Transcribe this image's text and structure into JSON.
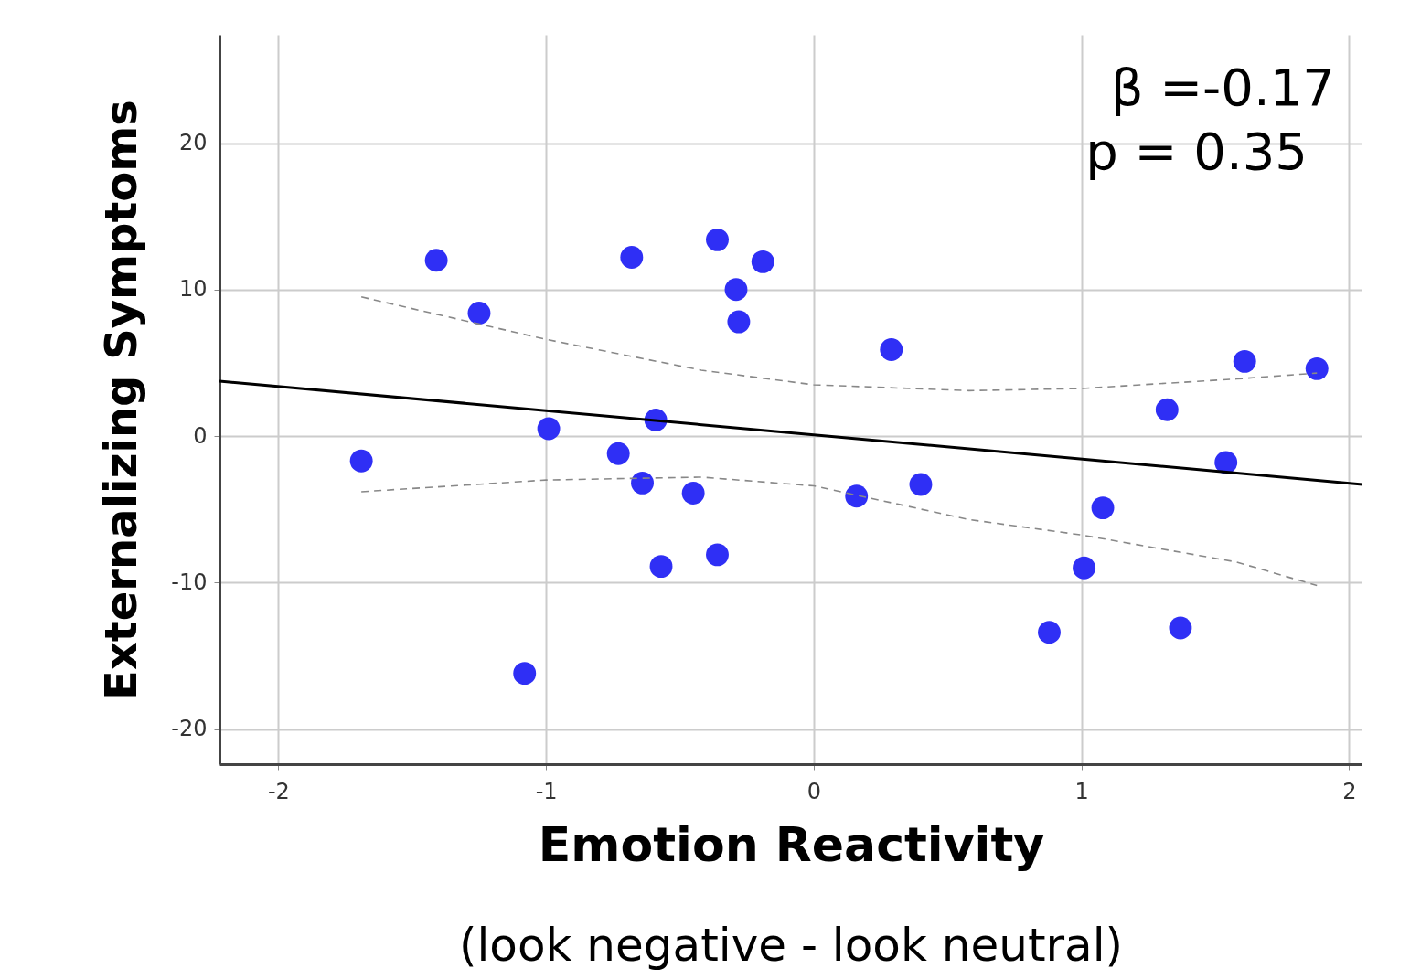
{
  "chart_data": {
    "type": "scatter",
    "xlabel": "Emotion Reactivity",
    "ylabel": "Externalizing Symptoms",
    "annotations": [
      "β =-0.17",
      "p = 0.35",
      "(look negative - look neutral)"
    ],
    "xlim": [
      -2.22,
      2.05
    ],
    "ylim": [
      -22.4,
      27.4
    ],
    "xticks": [
      -2,
      -1,
      0,
      1,
      2
    ],
    "yticks": [
      -20,
      -10,
      0,
      10,
      20
    ],
    "grid": true,
    "series": [
      {
        "marker": "circle",
        "color": "#2f2ff5",
        "x": [
          -1.69,
          -1.41,
          -1.25,
          -1.08,
          -0.99,
          -0.73,
          -0.68,
          -0.64,
          -0.59,
          -0.57,
          -0.45,
          -0.36,
          -0.36,
          -0.29,
          -0.28,
          -0.19,
          0.16,
          0.29,
          0.4,
          0.88,
          1.01,
          1.08,
          1.32,
          1.37,
          1.54,
          1.61,
          1.88
        ],
        "values": [
          -1.7,
          12.0,
          8.4,
          -16.2,
          0.5,
          -1.2,
          12.2,
          -3.2,
          1.1,
          -8.9,
          -3.9,
          13.4,
          -8.1,
          10.0,
          7.8,
          11.9,
          -4.1,
          5.9,
          -3.3,
          -13.4,
          -9.0,
          -4.9,
          1.8,
          -13.1,
          -1.8,
          5.1,
          4.6
        ]
      },
      {
        "type": "line",
        "color": "#000000",
        "line_style": "solid",
        "x": [
          -2.22,
          2.05
        ],
        "values": [
          3.75,
          -3.3
        ]
      },
      {
        "type": "line",
        "color": "#888888",
        "line_style": "dashed",
        "x": [
          -1.69,
          -1,
          -0.42,
          0,
          0.58,
          1,
          1.58,
          1.88
        ],
        "values": [
          9.5,
          6.6,
          4.5,
          3.5,
          3.1,
          3.25,
          3.9,
          4.3
        ]
      },
      {
        "type": "line",
        "color": "#888888",
        "line_style": "dashed",
        "x": [
          -1.69,
          -1,
          -0.42,
          0,
          0.58,
          1,
          1.58,
          1.88
        ],
        "values": [
          -3.8,
          -3.0,
          -2.8,
          -3.4,
          -5.7,
          -6.75,
          -8.6,
          -10.2
        ]
      }
    ]
  }
}
